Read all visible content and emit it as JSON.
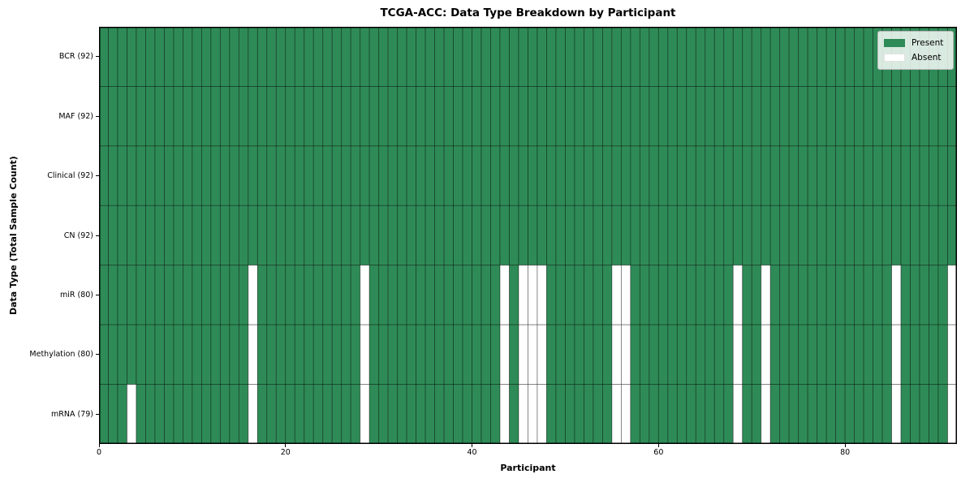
{
  "chart_data": {
    "type": "heatmap",
    "title": "TCGA-ACC: Data Type Breakdown by Participant",
    "xlabel": "Participant",
    "ylabel": "Data Type (Total Sample Count)",
    "n_participants": 92,
    "x_ticks": [
      0,
      20,
      40,
      60,
      80
    ],
    "x_range": [
      0,
      92
    ],
    "grid": true,
    "legend": {
      "position": "upper right",
      "entries": [
        {
          "label": "Present",
          "color": "#2e8b57"
        },
        {
          "label": "Absent",
          "color": "#ffffff"
        }
      ]
    },
    "rows": [
      {
        "label": "BCR (92)",
        "data_type": "BCR",
        "present_count": 92,
        "absent_participants": []
      },
      {
        "label": "MAF (92)",
        "data_type": "MAF",
        "present_count": 92,
        "absent_participants": []
      },
      {
        "label": "Clinical (92)",
        "data_type": "Clinical",
        "present_count": 92,
        "absent_participants": []
      },
      {
        "label": "CN (92)",
        "data_type": "CN",
        "present_count": 92,
        "absent_participants": []
      },
      {
        "label": "miR (80)",
        "data_type": "miR",
        "present_count": 80,
        "absent_participants": [
          16,
          28,
          43,
          45,
          46,
          47,
          55,
          56,
          68,
          71,
          85,
          91
        ]
      },
      {
        "label": "Methylation (80)",
        "data_type": "Methylation",
        "present_count": 80,
        "absent_participants": [
          16,
          28,
          43,
          45,
          46,
          47,
          55,
          56,
          68,
          71,
          85,
          91
        ]
      },
      {
        "label": "mRNA (79)",
        "data_type": "mRNA",
        "present_count": 79,
        "absent_participants": [
          3,
          16,
          28,
          43,
          45,
          46,
          47,
          55,
          56,
          68,
          71,
          85,
          91
        ]
      }
    ],
    "colors": {
      "present": "#2e8b57",
      "absent": "#ffffff",
      "cell_edge": "rgba(0,0,0,0.45)",
      "spine": "#000000",
      "text": "#000000"
    }
  }
}
